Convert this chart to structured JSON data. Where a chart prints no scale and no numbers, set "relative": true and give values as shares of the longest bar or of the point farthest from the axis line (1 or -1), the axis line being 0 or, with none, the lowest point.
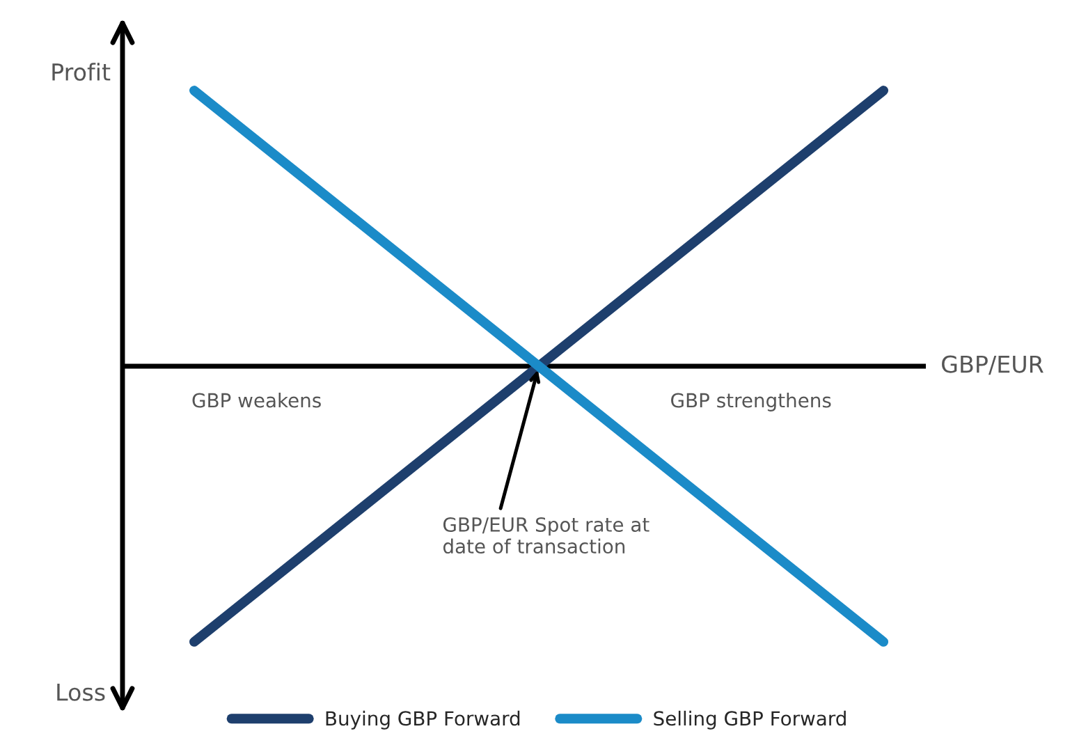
{
  "chart_data": {
    "type": "line",
    "relative": true,
    "categories": [
      null,
      null,
      null
    ],
    "series": [
      {
        "name": "Buying GBP Forward",
        "color": "#1e3f6d",
        "values": [
          -1,
          0,
          1
        ]
      },
      {
        "name": "Selling GBP Forward",
        "color": "#1b8bc8",
        "values": [
          1,
          0,
          -1
        ]
      }
    ],
    "xlabel": "GBP/EUR",
    "annotations": [
      "Profit",
      "Loss",
      "GBP weakens",
      "GBP strengthens",
      "GBP/EUR Spot rate at\ndate of transaction"
    ],
    "legend": "bottom",
    "marker": "none",
    "line_style": "solid"
  }
}
